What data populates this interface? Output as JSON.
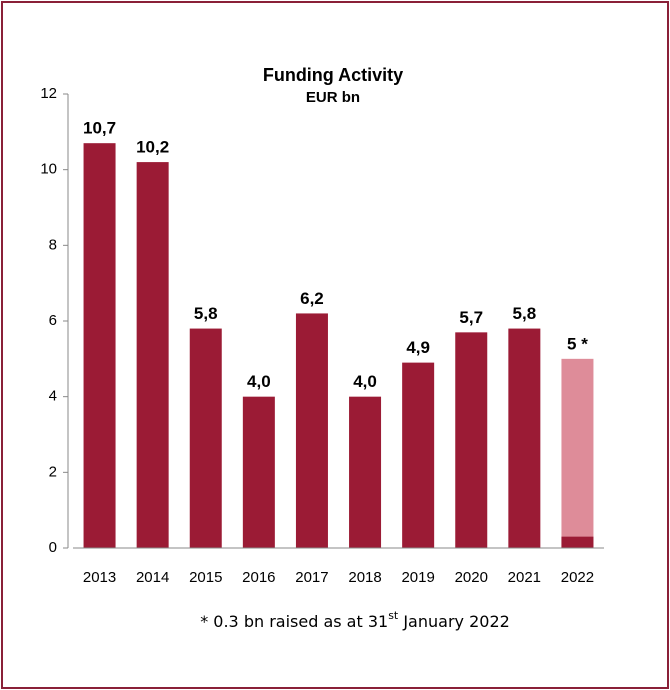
{
  "chart_data": {
    "type": "bar",
    "title": "Funding Activity",
    "subtitle": "EUR bn",
    "categories": [
      "2013",
      "2014",
      "2015",
      "2016",
      "2017",
      "2018",
      "2019",
      "2020",
      "2021",
      "2022"
    ],
    "values": [
      10.7,
      10.2,
      5.8,
      4.0,
      6.2,
      4.0,
      4.9,
      5.7,
      5.8,
      5
    ],
    "value_labels": [
      "10,7",
      "10,2",
      "5,8",
      "4,0",
      "6,2",
      "4,0",
      "4,9",
      "5,7",
      "5,8",
      "5 *"
    ],
    "colors": [
      "#9b1b35",
      "#9b1b35",
      "#9b1b35",
      "#9b1b35",
      "#9b1b35",
      "#9b1b35",
      "#9b1b35",
      "#9b1b35",
      "#9b1b35",
      "#de8c99"
    ],
    "raised": [
      null,
      null,
      null,
      null,
      null,
      null,
      null,
      null,
      null,
      0.3
    ],
    "raised_color": "#9b1b35",
    "ylim": [
      0,
      12
    ],
    "yticks": [
      0,
      2,
      4,
      6,
      8,
      10,
      12
    ],
    "footnote": {
      "text": "* 0.3 bn raised as at 31",
      "sup": "st",
      "rest": " January 2022"
    }
  }
}
